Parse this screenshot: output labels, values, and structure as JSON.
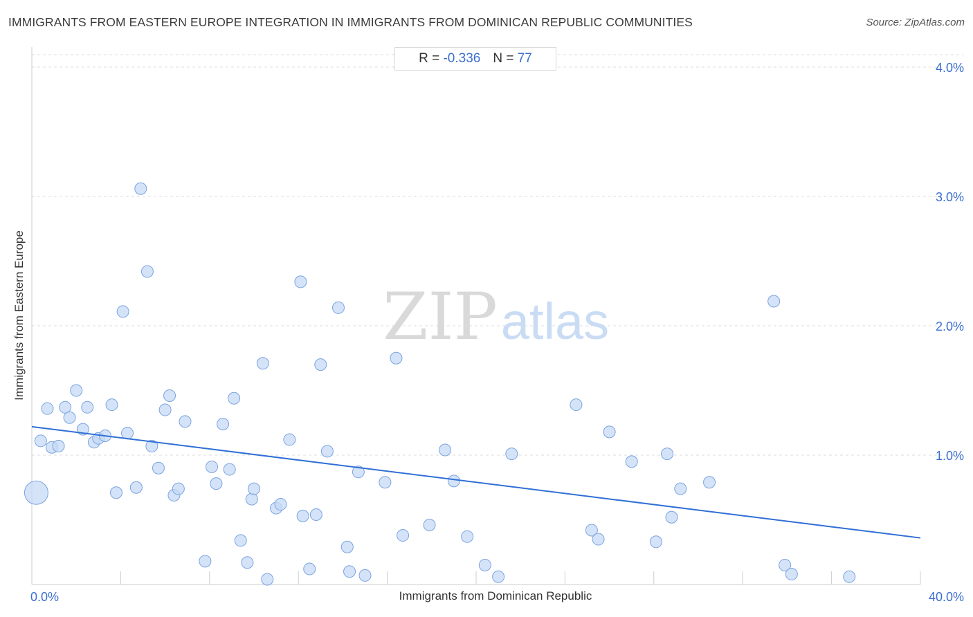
{
  "title": "IMMIGRANTS FROM EASTERN EUROPE INTEGRATION IN IMMIGRANTS FROM DOMINICAN REPUBLIC COMMUNITIES",
  "source": "Source: ZipAtlas.com",
  "watermark": {
    "zip": "ZIP",
    "atlas": "atlas"
  },
  "legend": {
    "r_label": "R = ",
    "r_value": "-0.336",
    "n_label": "N = ",
    "n_value": "77"
  },
  "colors": {
    "point_fill": "#c5d9f5",
    "point_stroke": "#7ba3e0",
    "trend": "#2f6fd6",
    "tick_label": "#3b6fd1",
    "grid": "#dddddd"
  },
  "chart_data": {
    "type": "scatter",
    "xlabel": "Immigrants from Dominican Republic",
    "ylabel": "Immigrants from Eastern Europe",
    "xlim": [
      0,
      40
    ],
    "ylim": [
      0,
      4.0
    ],
    "x_tick_labels": [
      {
        "value": 0,
        "label": "0.0%"
      },
      {
        "value": 40,
        "label": "40.0%"
      }
    ],
    "y_tick_labels": [
      {
        "value": 1,
        "label": "1.0%"
      },
      {
        "value": 2,
        "label": "2.0%"
      },
      {
        "value": 3,
        "label": "3.0%"
      },
      {
        "value": 4,
        "label": "4.0%"
      }
    ],
    "grid": "horizontal dashed",
    "trend": {
      "x": [
        0,
        40
      ],
      "y": [
        1.22,
        0.36
      ]
    },
    "points": [
      {
        "x": 0.2,
        "y": 0.71,
        "big": true
      },
      {
        "x": 0.4,
        "y": 1.11
      },
      {
        "x": 0.7,
        "y": 1.36
      },
      {
        "x": 0.9,
        "y": 1.06
      },
      {
        "x": 1.2,
        "y": 1.07
      },
      {
        "x": 1.5,
        "y": 1.37
      },
      {
        "x": 1.7,
        "y": 1.29
      },
      {
        "x": 2.0,
        "y": 1.5
      },
      {
        "x": 2.3,
        "y": 1.2
      },
      {
        "x": 2.5,
        "y": 1.37
      },
      {
        "x": 2.8,
        "y": 1.1
      },
      {
        "x": 3.0,
        "y": 1.13
      },
      {
        "x": 3.3,
        "y": 1.15
      },
      {
        "x": 3.6,
        "y": 1.39
      },
      {
        "x": 3.8,
        "y": 0.71
      },
      {
        "x": 4.1,
        "y": 2.11
      },
      {
        "x": 4.3,
        "y": 1.17
      },
      {
        "x": 4.7,
        "y": 0.75
      },
      {
        "x": 4.9,
        "y": 3.06
      },
      {
        "x": 5.2,
        "y": 2.42
      },
      {
        "x": 5.4,
        "y": 1.07
      },
      {
        "x": 5.7,
        "y": 0.9
      },
      {
        "x": 6.0,
        "y": 1.35
      },
      {
        "x": 6.2,
        "y": 1.46
      },
      {
        "x": 6.4,
        "y": 0.69
      },
      {
        "x": 6.6,
        "y": 0.74
      },
      {
        "x": 6.9,
        "y": 1.26
      },
      {
        "x": 7.8,
        "y": 0.18
      },
      {
        "x": 8.1,
        "y": 0.91
      },
      {
        "x": 8.3,
        "y": 0.78
      },
      {
        "x": 8.6,
        "y": 1.24
      },
      {
        "x": 8.9,
        "y": 0.89
      },
      {
        "x": 9.1,
        "y": 1.44
      },
      {
        "x": 9.4,
        "y": 0.34
      },
      {
        "x": 9.7,
        "y": 0.17
      },
      {
        "x": 9.9,
        "y": 0.66
      },
      {
        "x": 10.0,
        "y": 0.74
      },
      {
        "x": 10.4,
        "y": 1.71
      },
      {
        "x": 10.6,
        "y": 0.04
      },
      {
        "x": 11.0,
        "y": 0.59
      },
      {
        "x": 11.2,
        "y": 0.62
      },
      {
        "x": 11.6,
        "y": 1.12
      },
      {
        "x": 12.1,
        "y": 2.34
      },
      {
        "x": 12.2,
        "y": 0.53
      },
      {
        "x": 12.5,
        "y": 0.12
      },
      {
        "x": 12.8,
        "y": 0.54
      },
      {
        "x": 13.0,
        "y": 1.7
      },
      {
        "x": 13.3,
        "y": 1.03
      },
      {
        "x": 13.8,
        "y": 2.14
      },
      {
        "x": 14.2,
        "y": 0.29
      },
      {
        "x": 14.3,
        "y": 0.1
      },
      {
        "x": 14.7,
        "y": 0.87
      },
      {
        "x": 15.0,
        "y": 0.07
      },
      {
        "x": 15.9,
        "y": 0.79
      },
      {
        "x": 16.4,
        "y": 1.75
      },
      {
        "x": 16.7,
        "y": 0.38
      },
      {
        "x": 17.9,
        "y": 0.46
      },
      {
        "x": 18.6,
        "y": 1.04
      },
      {
        "x": 19.0,
        "y": 0.8
      },
      {
        "x": 19.6,
        "y": 0.37
      },
      {
        "x": 20.4,
        "y": 0.15
      },
      {
        "x": 21.0,
        "y": 0.06
      },
      {
        "x": 21.6,
        "y": 1.01
      },
      {
        "x": 24.5,
        "y": 1.39
      },
      {
        "x": 25.2,
        "y": 0.42
      },
      {
        "x": 25.5,
        "y": 0.35
      },
      {
        "x": 26.0,
        "y": 1.18
      },
      {
        "x": 27.0,
        "y": 0.95
      },
      {
        "x": 28.1,
        "y": 0.33
      },
      {
        "x": 28.6,
        "y": 1.01
      },
      {
        "x": 28.8,
        "y": 0.52
      },
      {
        "x": 29.2,
        "y": 0.74
      },
      {
        "x": 30.5,
        "y": 0.79
      },
      {
        "x": 33.4,
        "y": 2.19
      },
      {
        "x": 33.9,
        "y": 0.15
      },
      {
        "x": 34.2,
        "y": 0.08
      },
      {
        "x": 36.8,
        "y": 0.06
      }
    ]
  }
}
